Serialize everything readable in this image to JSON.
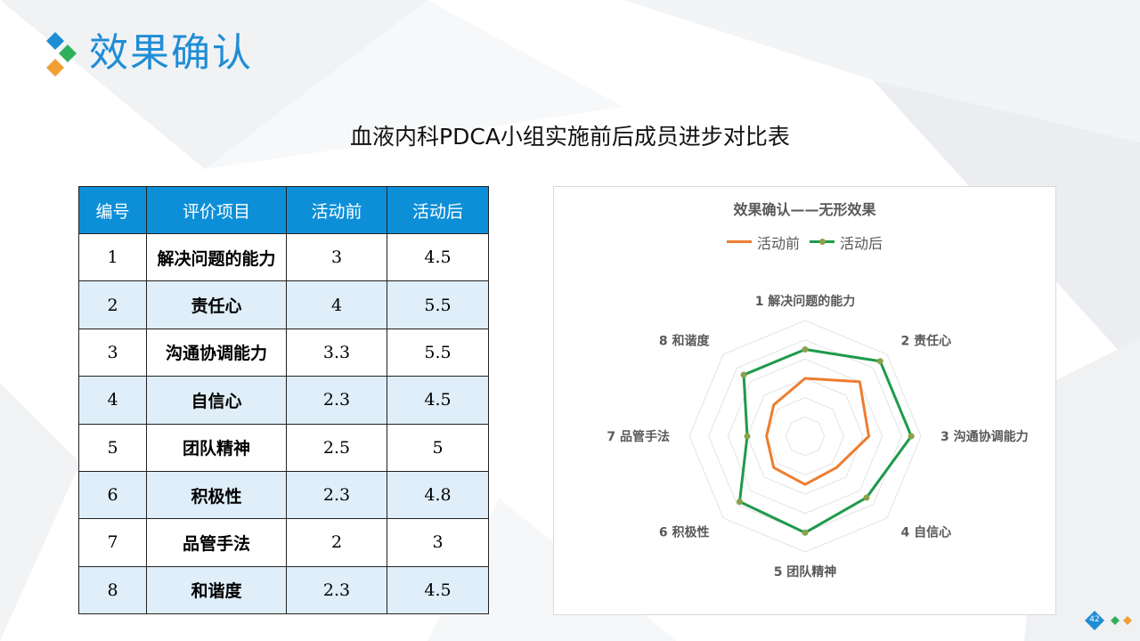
{
  "page": {
    "title": "效果确认",
    "table_title": "血液内科PDCA小组实施前后成员进步对比表",
    "page_number": "42"
  },
  "table": {
    "headers": [
      "编号",
      "评价项目",
      "活动前",
      "活动后"
    ],
    "rows": [
      {
        "id": "1",
        "item": "解决问题的能力",
        "before": "3",
        "after": "4.5"
      },
      {
        "id": "2",
        "item": "责任心",
        "before": "4",
        "after": "5.5"
      },
      {
        "id": "3",
        "item": "沟通协调能力",
        "before": "3.3",
        "after": "5.5"
      },
      {
        "id": "4",
        "item": "自信心",
        "before": "2.3",
        "after": "4.5"
      },
      {
        "id": "5",
        "item": "团队精神",
        "before": "2.5",
        "after": "5"
      },
      {
        "id": "6",
        "item": "积极性",
        "before": "2.3",
        "after": "4.8"
      },
      {
        "id": "7",
        "item": "品管手法",
        "before": "2",
        "after": "3"
      },
      {
        "id": "8",
        "item": "和谐度",
        "before": "2.3",
        "after": "4.5"
      }
    ]
  },
  "chart_data": {
    "type": "radar",
    "title": "效果确认——无形效果",
    "categories": [
      "1 解决问题的能力",
      "2 责任心",
      "3 沟通协调能力",
      "4 自信心",
      "5 团队精神",
      "6 积极性",
      "7 品管手法",
      "8 和谐度"
    ],
    "series": [
      {
        "name": "活动前",
        "color": "#ed7d31",
        "values": [
          3,
          4,
          3.3,
          2.3,
          2.5,
          2.3,
          2,
          2.3
        ]
      },
      {
        "name": "活动后",
        "color": "#1e9a4b",
        "marker_color": "#8aa14a",
        "values": [
          4.5,
          5.5,
          5.5,
          4.5,
          5,
          4.8,
          3,
          4.5
        ]
      }
    ],
    "rlim": [
      0,
      6
    ],
    "gridlines": true,
    "legend_position": "top"
  },
  "colors": {
    "accent": "#1f8dd6",
    "header_bg": "#0d8fd8",
    "stripe": "#dfeef8"
  }
}
